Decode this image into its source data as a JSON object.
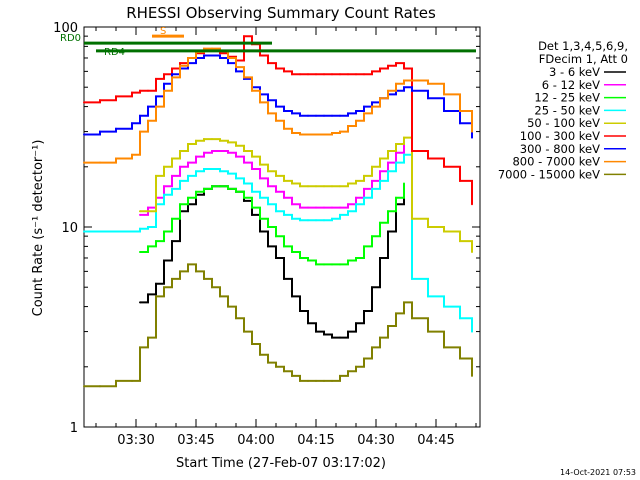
{
  "chart_data": {
    "type": "line",
    "title": "RHESSI Observing Summary Count Rates",
    "xlabel": "Start Time (27-Feb-07 03:17:02)",
    "ylabel": "Count Rate (s⁻¹ detector⁻¹)",
    "ylog": true,
    "ylim": [
      1,
      100
    ],
    "xlim_minutes_after_start": [
      0,
      99
    ],
    "x_tick_labels": [
      "03:30",
      "03:45",
      "04:00",
      "04:15",
      "04:30",
      "04:45"
    ],
    "x_tick_minutes": [
      13,
      28,
      43,
      58,
      73,
      88
    ],
    "y_tick_labels": [
      "1",
      "10",
      "100"
    ],
    "legend_header": [
      "Det 1,3,4,5,6,9,",
      "FDecim 1, Att 0"
    ],
    "legend_position": "right",
    "series": [
      {
        "name": "3 - 6 keV",
        "color": "#000000",
        "x": [
          14,
          16,
          18,
          20,
          22,
          24,
          26,
          28,
          30,
          32,
          34,
          36,
          38,
          40,
          42,
          44,
          46,
          48,
          50,
          52,
          54,
          56,
          58,
          60,
          62,
          64,
          66,
          68,
          70,
          72,
          74,
          76,
          78,
          80
        ],
        "y": [
          4.2,
          4.6,
          5.2,
          6.8,
          8.5,
          12,
          13,
          14.5,
          15.5,
          16,
          16,
          15.5,
          15,
          13.5,
          11.5,
          9.5,
          8,
          7,
          5.5,
          4.5,
          3.8,
          3.3,
          3.0,
          2.9,
          2.8,
          2.8,
          3.0,
          3.3,
          3.8,
          5.0,
          7.0,
          9.5,
          13,
          16
        ]
      },
      {
        "name": "6 - 12 keV",
        "color": "#ff00ff",
        "x": [
          14,
          16,
          18,
          20,
          22,
          24,
          26,
          28,
          30,
          32,
          34,
          36,
          38,
          40,
          42,
          44,
          46,
          48,
          50,
          52,
          54,
          56,
          58,
          60,
          62,
          64,
          66,
          68,
          70,
          72,
          74,
          76,
          78,
          80
        ],
        "y": [
          11.5,
          12.5,
          14,
          16,
          18,
          20,
          21,
          22.5,
          23.5,
          24,
          24,
          23.5,
          22.5,
          21,
          19.5,
          17.5,
          16,
          15,
          14,
          13,
          12.5,
          12.5,
          12.5,
          12.5,
          12.5,
          12.5,
          13,
          14,
          15.5,
          17,
          19,
          21,
          23.5,
          26
        ]
      },
      {
        "name": "12 - 25 keV",
        "color": "#00ff00",
        "x": [
          14,
          16,
          18,
          20,
          22,
          24,
          26,
          28,
          30,
          32,
          34,
          36,
          38,
          40,
          42,
          44,
          46,
          48,
          50,
          52,
          54,
          56,
          58,
          60,
          62,
          64,
          66,
          68,
          70,
          72,
          74,
          76,
          78,
          80
        ],
        "y": [
          7.5,
          8,
          8.5,
          9.5,
          11,
          13,
          14,
          15,
          15.5,
          16,
          16,
          15.5,
          15,
          14,
          12.5,
          11,
          10,
          9,
          8,
          7.5,
          7,
          6.8,
          6.5,
          6.5,
          6.5,
          6.5,
          6.8,
          7,
          8,
          9,
          10.5,
          12,
          14,
          16.5
        ]
      },
      {
        "name": "25 - 50 keV",
        "color": "#00ffff",
        "x": [
          0,
          10,
          14,
          16,
          18,
          20,
          22,
          24,
          26,
          28,
          30,
          32,
          34,
          36,
          38,
          40,
          42,
          44,
          46,
          48,
          50,
          52,
          54,
          56,
          58,
          60,
          62,
          64,
          66,
          68,
          70,
          72,
          74,
          76,
          78,
          80,
          82,
          86,
          90,
          94,
          97
        ],
        "y": [
          9.5,
          9.5,
          9.8,
          10,
          13,
          14.5,
          15.5,
          17,
          18,
          19,
          19.5,
          19.5,
          19,
          18.5,
          17.5,
          16.5,
          15,
          14,
          13,
          12,
          11.5,
          11,
          10.8,
          10.8,
          10.8,
          10.8,
          11,
          11.5,
          12,
          13,
          14,
          15.5,
          17,
          19,
          21,
          23,
          5.5,
          4.5,
          4,
          3.5,
          3
        ]
      },
      {
        "name": "50 - 100 keV",
        "color": "#cccc00",
        "x": [
          14,
          16,
          18,
          20,
          22,
          24,
          26,
          28,
          30,
          32,
          34,
          36,
          38,
          40,
          42,
          44,
          46,
          48,
          50,
          52,
          54,
          56,
          58,
          60,
          62,
          64,
          66,
          68,
          70,
          72,
          74,
          76,
          78,
          80,
          82,
          86,
          90,
          94,
          97
        ],
        "y": [
          12,
          12,
          18,
          20,
          22,
          24,
          26,
          27,
          27.5,
          27.5,
          27,
          26.5,
          25.5,
          24,
          22.5,
          20.5,
          19,
          18,
          17,
          16.5,
          16,
          16,
          16,
          16,
          16,
          16,
          16.5,
          17,
          18,
          20,
          22,
          24,
          26,
          28,
          11,
          10,
          9.5,
          8.5,
          7.5
        ]
      },
      {
        "name": "100 - 300 keV",
        "color": "#ff0000",
        "x": [
          0,
          4,
          8,
          12,
          14,
          16,
          18,
          20,
          22,
          24,
          26,
          28,
          30,
          32,
          34,
          36,
          38,
          40,
          42,
          44,
          46,
          48,
          50,
          52,
          54,
          56,
          58,
          60,
          62,
          64,
          66,
          68,
          70,
          72,
          74,
          76,
          78,
          80,
          82,
          86,
          90,
          94,
          97
        ],
        "y": [
          42,
          43,
          45,
          47,
          48,
          48,
          55,
          58,
          62,
          66,
          70,
          74,
          76,
          76,
          74,
          71,
          68,
          90,
          82,
          72,
          66,
          62,
          60,
          58,
          58,
          58,
          58,
          58,
          58,
          58,
          58,
          58,
          58,
          60,
          62,
          64,
          66,
          62,
          24,
          22,
          20,
          17,
          13
        ]
      },
      {
        "name": "300 - 800 keV",
        "color": "#0000ff",
        "x": [
          0,
          4,
          8,
          12,
          14,
          16,
          18,
          20,
          22,
          24,
          26,
          28,
          30,
          32,
          34,
          36,
          38,
          40,
          42,
          44,
          46,
          48,
          50,
          52,
          54,
          56,
          58,
          60,
          62,
          64,
          66,
          68,
          70,
          72,
          74,
          76,
          78,
          80,
          82,
          86,
          90,
          94,
          97
        ],
        "y": [
          29,
          30,
          31,
          33,
          36,
          40,
          45,
          52,
          58,
          62,
          66,
          70,
          72,
          72,
          70,
          66,
          60,
          55,
          50,
          46,
          43,
          40,
          38,
          37,
          36,
          36,
          36,
          36,
          36,
          36,
          37,
          38,
          40,
          42,
          44,
          46,
          48,
          50,
          48,
          44,
          38,
          33,
          28
        ]
      },
      {
        "name": "800 - 7000 keV",
        "color": "#ff8800",
        "x": [
          0,
          4,
          8,
          12,
          14,
          16,
          18,
          20,
          22,
          24,
          26,
          28,
          30,
          32,
          34,
          36,
          38,
          40,
          42,
          44,
          46,
          48,
          50,
          52,
          54,
          56,
          58,
          60,
          62,
          64,
          66,
          68,
          70,
          72,
          74,
          76,
          78,
          80,
          82,
          86,
          90,
          94,
          97
        ],
        "y": [
          21,
          21,
          22,
          23,
          30,
          34,
          40,
          48,
          56,
          64,
          70,
          75,
          78,
          78,
          76,
          70,
          63,
          56,
          48,
          42,
          37,
          34,
          31,
          29.5,
          29,
          29,
          29,
          29,
          29.5,
          30,
          32,
          34,
          37,
          40,
          44,
          48,
          52,
          54,
          54,
          52,
          46,
          38,
          30
        ]
      },
      {
        "name": "7000 - 15000 keV",
        "color": "#808000",
        "x": [
          0,
          4,
          8,
          12,
          14,
          16,
          18,
          20,
          22,
          24,
          26,
          28,
          30,
          32,
          34,
          36,
          38,
          40,
          42,
          44,
          46,
          48,
          50,
          52,
          54,
          56,
          58,
          60,
          62,
          64,
          66,
          68,
          70,
          72,
          74,
          76,
          78,
          80,
          82,
          86,
          90,
          94,
          97
        ],
        "y": [
          1.6,
          1.6,
          1.7,
          1.7,
          2.5,
          2.8,
          4.5,
          5,
          5.5,
          6,
          6.5,
          6,
          5.5,
          5,
          4.5,
          4,
          3.5,
          3,
          2.6,
          2.3,
          2.1,
          2,
          1.9,
          1.8,
          1.7,
          1.7,
          1.7,
          1.7,
          1.7,
          1.8,
          1.9,
          2,
          2.2,
          2.5,
          2.8,
          3.2,
          3.7,
          4.2,
          3.5,
          3,
          2.5,
          2.2,
          1.8
        ]
      }
    ],
    "flags": [
      {
        "label": "RD0",
        "color": "#007000",
        "x_start": 0,
        "x_end": 47,
        "level": 83
      },
      {
        "label": "RD4",
        "color": "#007000",
        "x_start": 3,
        "x_end": 98,
        "level": 76
      },
      {
        "label": "S",
        "color": "#ff8800",
        "x_start": 17,
        "x_end": 25,
        "level": 90
      }
    ]
  },
  "corner_text": "14-Oct-2021 07:53"
}
